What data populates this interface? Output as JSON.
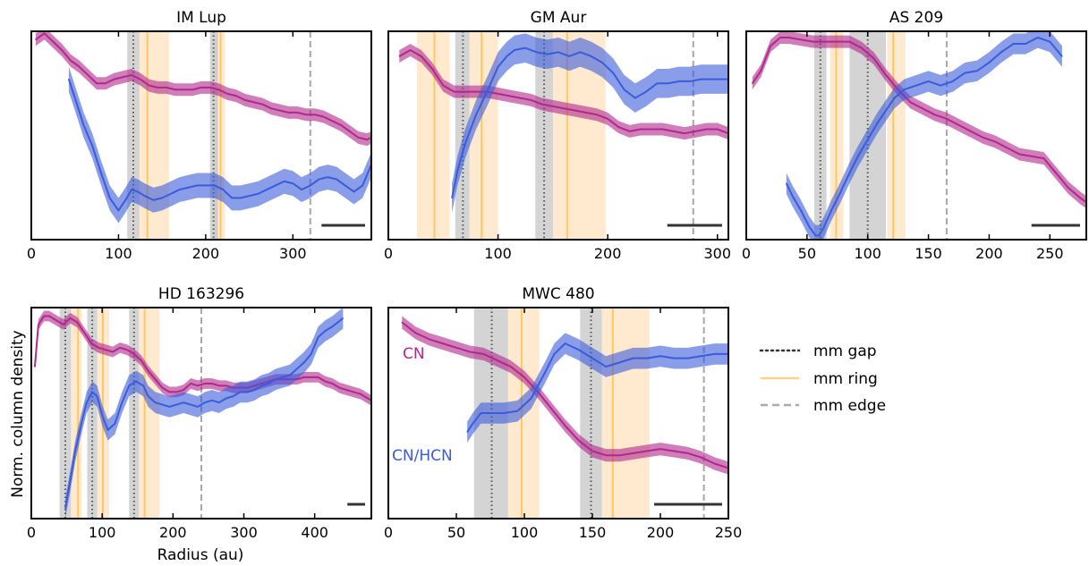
{
  "figure": {
    "ylabel": "Norm. column density",
    "xlabel": "Radius (au)"
  },
  "legend": {
    "placement": "right",
    "items": [
      {
        "label": "mm gap",
        "style": "dotted",
        "color": "#333333"
      },
      {
        "label": "mm ring",
        "style": "solid",
        "color": "#ffd08a"
      },
      {
        "label": "mm edge",
        "style": "dashed",
        "color": "#aaaaaa"
      }
    ]
  },
  "colors": {
    "cn": "#b0288c",
    "cn_hcn": "#3b5bdb",
    "gap_band": "#bdbdbd",
    "ring_band": "#ffe3bf",
    "ring_line": "#ffc766",
    "edge_line": "#a8a8a8",
    "gap_line": "#555555"
  },
  "chart_data": [
    {
      "type": "line",
      "title": "IM Lup",
      "xlim": [
        0,
        390
      ],
      "ylim": [
        0,
        1
      ],
      "xticks": [
        0,
        100,
        200,
        300
      ],
      "gaps": [
        [
          110,
          117,
          124
        ],
        [
          205,
          209,
          214
        ]
      ],
      "rings": [
        [
          124,
          133,
          158
        ],
        [
          211,
          217,
          222
        ]
      ],
      "edge": 320,
      "beam": 50,
      "series": [
        {
          "name": "CN",
          "color": "cn",
          "band": 0.03,
          "x": [
            5,
            15,
            25,
            35,
            45,
            55,
            65,
            75,
            85,
            95,
            105,
            115,
            125,
            135,
            145,
            155,
            165,
            175,
            185,
            195,
            205,
            215,
            225,
            235,
            245,
            255,
            265,
            275,
            285,
            295,
            305,
            315,
            325,
            335,
            345,
            355,
            365,
            375,
            385,
            390
          ],
          "y": [
            0.96,
            0.99,
            0.95,
            0.91,
            0.86,
            0.83,
            0.79,
            0.75,
            0.75,
            0.77,
            0.78,
            0.79,
            0.77,
            0.74,
            0.73,
            0.73,
            0.72,
            0.72,
            0.72,
            0.73,
            0.73,
            0.72,
            0.7,
            0.69,
            0.67,
            0.66,
            0.65,
            0.63,
            0.62,
            0.61,
            0.61,
            0.6,
            0.6,
            0.59,
            0.57,
            0.55,
            0.52,
            0.49,
            0.48,
            0.49
          ]
        },
        {
          "name": "CN/HCN",
          "color": "cn_hcn",
          "band": 0.06,
          "x": [
            43,
            50,
            60,
            70,
            80,
            90,
            100,
            108,
            115,
            122,
            130,
            140,
            150,
            160,
            170,
            180,
            190,
            200,
            210,
            220,
            230,
            240,
            250,
            260,
            270,
            280,
            290,
            300,
            310,
            320,
            330,
            340,
            350,
            360,
            370,
            380,
            390
          ],
          "y": [
            0.77,
            0.68,
            0.55,
            0.45,
            0.32,
            0.2,
            0.14,
            0.19,
            0.24,
            0.23,
            0.21,
            0.19,
            0.2,
            0.22,
            0.24,
            0.25,
            0.26,
            0.26,
            0.26,
            0.24,
            0.2,
            0.2,
            0.21,
            0.22,
            0.24,
            0.26,
            0.28,
            0.27,
            0.24,
            0.26,
            0.29,
            0.3,
            0.29,
            0.26,
            0.23,
            0.26,
            0.36
          ]
        }
      ]
    },
    {
      "type": "line",
      "title": "GM Aur",
      "xlim": [
        0,
        310
      ],
      "ylim": [
        0,
        1
      ],
      "xticks": [
        0,
        100,
        200,
        300
      ],
      "gaps": [
        [
          61,
          68,
          74
        ],
        [
          134,
          142,
          150
        ]
      ],
      "rings": [
        [
          26,
          42,
          56
        ],
        [
          74,
          85,
          100
        ],
        [
          150,
          163,
          198
        ]
      ],
      "edge": 278,
      "beam": 50,
      "series": [
        {
          "name": "CN",
          "color": "cn",
          "band": 0.03,
          "x": [
            10,
            20,
            30,
            40,
            50,
            60,
            70,
            80,
            90,
            100,
            110,
            120,
            130,
            140,
            150,
            160,
            170,
            180,
            190,
            200,
            210,
            220,
            230,
            240,
            250,
            260,
            270,
            280,
            290,
            300,
            310
          ],
          "y": [
            0.88,
            0.91,
            0.88,
            0.82,
            0.74,
            0.71,
            0.71,
            0.71,
            0.71,
            0.7,
            0.69,
            0.68,
            0.67,
            0.65,
            0.64,
            0.63,
            0.62,
            0.61,
            0.6,
            0.58,
            0.54,
            0.52,
            0.53,
            0.53,
            0.53,
            0.52,
            0.51,
            0.52,
            0.53,
            0.53,
            0.51
          ]
        },
        {
          "name": "CN/HCN",
          "color": "cn_hcn",
          "band": 0.07,
          "x": [
            58,
            63,
            70,
            80,
            90,
            100,
            108,
            115,
            125,
            135,
            145,
            155,
            165,
            175,
            185,
            195,
            205,
            215,
            225,
            235,
            245,
            255,
            265,
            275,
            285,
            295,
            305,
            310
          ],
          "y": [
            0.2,
            0.33,
            0.46,
            0.6,
            0.71,
            0.83,
            0.88,
            0.91,
            0.92,
            0.9,
            0.89,
            0.9,
            0.88,
            0.9,
            0.88,
            0.85,
            0.8,
            0.72,
            0.68,
            0.71,
            0.75,
            0.75,
            0.76,
            0.76,
            0.77,
            0.77,
            0.77,
            0.77
          ]
        }
      ]
    },
    {
      "type": "line",
      "title": "AS 209",
      "xlim": [
        0,
        280
      ],
      "ylim": [
        0,
        1
      ],
      "xticks": [
        0,
        50,
        100,
        150,
        200,
        250
      ],
      "gaps": [
        [
          56,
          61,
          66
        ],
        [
          85,
          100,
          115
        ]
      ],
      "rings": [
        [
          69,
          74,
          80
        ],
        [
          116,
          121,
          131
        ]
      ],
      "edge": 165,
      "beam": 40,
      "series": [
        {
          "name": "CN",
          "color": "cn",
          "band": 0.03,
          "x": [
            5,
            12,
            20,
            28,
            35,
            45,
            55,
            65,
            75,
            85,
            95,
            105,
            115,
            125,
            135,
            145,
            155,
            165,
            175,
            185,
            195,
            205,
            215,
            225,
            235,
            245,
            255,
            265,
            275,
            280
          ],
          "y": [
            0.75,
            0.81,
            0.93,
            0.97,
            0.97,
            0.96,
            0.95,
            0.95,
            0.95,
            0.95,
            0.92,
            0.87,
            0.79,
            0.72,
            0.66,
            0.63,
            0.6,
            0.58,
            0.55,
            0.52,
            0.49,
            0.47,
            0.44,
            0.41,
            0.4,
            0.39,
            0.32,
            0.25,
            0.2,
            0.18
          ]
        },
        {
          "name": "CN/HCN",
          "color": "cn_hcn",
          "band": 0.05,
          "x": [
            33,
            38,
            45,
            52,
            57,
            60,
            64,
            70,
            77,
            85,
            92,
            100,
            108,
            115,
            122,
            130,
            140,
            150,
            160,
            170,
            180,
            190,
            200,
            210,
            220,
            230,
            240,
            250,
            260
          ],
          "y": [
            0.27,
            0.21,
            0.14,
            0.06,
            0.02,
            0.02,
            0.06,
            0.14,
            0.22,
            0.32,
            0.4,
            0.48,
            0.56,
            0.62,
            0.68,
            0.72,
            0.74,
            0.76,
            0.74,
            0.76,
            0.8,
            0.81,
            0.85,
            0.9,
            0.94,
            0.94,
            0.97,
            0.95,
            0.88
          ]
        }
      ]
    },
    {
      "type": "line",
      "title": "HD 163296",
      "xlim": [
        0,
        480
      ],
      "ylim": [
        0,
        1
      ],
      "xticks": [
        0,
        100,
        200,
        300,
        400
      ],
      "gaps": [
        [
          40,
          48,
          56
        ],
        [
          79,
          86,
          93
        ],
        [
          138,
          145,
          152
        ]
      ],
      "rings": [
        [
          56,
          66,
          71
        ],
        [
          93,
          101,
          110
        ],
        [
          152,
          160,
          181
        ]
      ],
      "edge": 240,
      "beam": 25,
      "series": [
        {
          "name": "CN",
          "color": "cn",
          "band": 0.025,
          "x": [
            5,
            10,
            18,
            25,
            35,
            45,
            55,
            65,
            75,
            85,
            95,
            105,
            115,
            125,
            135,
            145,
            155,
            165,
            175,
            185,
            195,
            205,
            215,
            225,
            235,
            245,
            255,
            265,
            275,
            285,
            295,
            305,
            315,
            325,
            335,
            345,
            355,
            365,
            375,
            385,
            395,
            405,
            415,
            425,
            435,
            445,
            455,
            465,
            475,
            480
          ],
          "y": [
            0.72,
            0.92,
            0.96,
            0.96,
            0.94,
            0.92,
            0.95,
            0.93,
            0.88,
            0.83,
            0.81,
            0.8,
            0.79,
            0.81,
            0.8,
            0.78,
            0.75,
            0.7,
            0.66,
            0.62,
            0.6,
            0.6,
            0.61,
            0.64,
            0.63,
            0.64,
            0.64,
            0.63,
            0.63,
            0.62,
            0.62,
            0.62,
            0.63,
            0.64,
            0.65,
            0.66,
            0.66,
            0.66,
            0.66,
            0.67,
            0.67,
            0.67,
            0.65,
            0.64,
            0.62,
            0.61,
            0.6,
            0.59,
            0.57,
            0.56
          ]
        },
        {
          "name": "CN/HCN",
          "color": "cn_hcn",
          "band": 0.05,
          "x": [
            48,
            55,
            62,
            70,
            78,
            86,
            93,
            100,
            108,
            118,
            128,
            138,
            148,
            158,
            165,
            175,
            185,
            195,
            205,
            215,
            225,
            235,
            245,
            255,
            265,
            275,
            285,
            295,
            305,
            315,
            325,
            335,
            345,
            355,
            365,
            375,
            385,
            395,
            405,
            415,
            425,
            440
          ],
          "y": [
            0.05,
            0.18,
            0.32,
            0.44,
            0.55,
            0.6,
            0.58,
            0.49,
            0.42,
            0.45,
            0.55,
            0.63,
            0.65,
            0.63,
            0.58,
            0.55,
            0.54,
            0.53,
            0.54,
            0.55,
            0.54,
            0.53,
            0.55,
            0.56,
            0.55,
            0.57,
            0.58,
            0.6,
            0.6,
            0.61,
            0.63,
            0.64,
            0.66,
            0.67,
            0.68,
            0.71,
            0.74,
            0.78,
            0.86,
            0.89,
            0.91,
            0.95
          ]
        }
      ]
    },
    {
      "type": "line",
      "title": "MWC 480",
      "xlim": [
        0,
        250
      ],
      "ylim": [
        0,
        1
      ],
      "xticks": [
        0,
        50,
        100,
        150,
        200,
        250
      ],
      "gaps": [
        [
          63,
          76,
          88
        ],
        [
          141,
          149,
          157
        ]
      ],
      "rings": [
        [
          88,
          98,
          111
        ],
        [
          157,
          165,
          192
        ]
      ],
      "edge": 232,
      "beam": 50,
      "series_labels": [
        "CN",
        "CN/HCN"
      ],
      "series": [
        {
          "name": "CN",
          "color": "cn",
          "band": 0.03,
          "x": [
            10,
            20,
            30,
            40,
            50,
            60,
            70,
            80,
            90,
            100,
            110,
            120,
            130,
            140,
            150,
            160,
            170,
            180,
            190,
            200,
            210,
            220,
            230,
            240,
            250
          ],
          "y": [
            0.93,
            0.88,
            0.85,
            0.83,
            0.81,
            0.79,
            0.78,
            0.75,
            0.72,
            0.67,
            0.6,
            0.52,
            0.44,
            0.37,
            0.32,
            0.3,
            0.3,
            0.31,
            0.32,
            0.33,
            0.32,
            0.31,
            0.29,
            0.26,
            0.24
          ]
        },
        {
          "name": "CN/HCN",
          "color": "cn_hcn",
          "band": 0.05,
          "x": [
            58,
            62,
            68,
            75,
            85,
            95,
            105,
            115,
            122,
            130,
            140,
            150,
            160,
            170,
            180,
            190,
            200,
            210,
            220,
            230,
            240,
            250
          ],
          "y": [
            0.41,
            0.45,
            0.5,
            0.5,
            0.5,
            0.51,
            0.57,
            0.69,
            0.78,
            0.83,
            0.8,
            0.76,
            0.72,
            0.74,
            0.76,
            0.76,
            0.77,
            0.76,
            0.76,
            0.77,
            0.78,
            0.78
          ]
        }
      ]
    }
  ]
}
